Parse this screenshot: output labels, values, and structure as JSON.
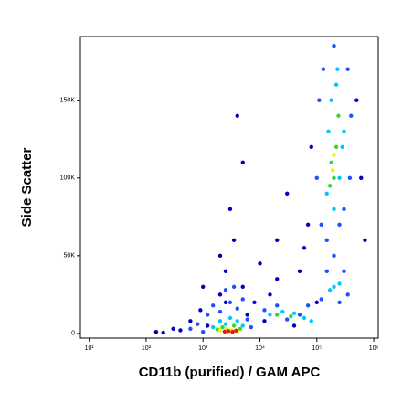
{
  "chart_data": {
    "type": "scatter",
    "x_label": "CD11b (purified) / GAM APC",
    "y_label": "Side Scatter",
    "log_x": true,
    "xlim": [
      7,
      1200000
    ],
    "ylim": [
      -3000,
      191000
    ],
    "xticks": [
      {
        "value": 10,
        "label": "10¹"
      },
      {
        "value": 100,
        "label": "10²"
      },
      {
        "value": 1000,
        "label": "10³"
      },
      {
        "value": 10000,
        "label": "10⁴"
      },
      {
        "value": 100000,
        "label": "10⁵"
      },
      {
        "value": 1000000,
        "label": "10⁶"
      }
    ],
    "yticks": [
      0,
      {
        "value": 50000,
        "label": "50K"
      },
      {
        "value": 100000,
        "label": "100K"
      },
      {
        "value": 150000,
        "label": "150K"
      }
    ],
    "series": [
      {
        "color": "#0000c0",
        "x": [
          150,
          300,
          600,
          900,
          1200,
          2000,
          2500,
          3500,
          5000,
          8000,
          15000,
          20000,
          30000,
          50000,
          70000,
          80000,
          500000,
          600000,
          3000,
          5000,
          10000,
          20000,
          4000,
          2000,
          1000,
          400,
          200,
          100000,
          700000,
          60000,
          2500,
          6000,
          12000,
          40000
        ],
        "values": [
          1000,
          3000,
          8000,
          15000,
          5000,
          25000,
          40000,
          60000,
          30000,
          20000,
          25000,
          60000,
          90000,
          40000,
          70000,
          120000,
          150000,
          100000,
          80000,
          110000,
          45000,
          35000,
          140000,
          50000,
          30000,
          2000,
          500,
          20000,
          60000,
          55000,
          20000,
          12000,
          8000,
          5000
        ]
      },
      {
        "color": "#1e50ff",
        "x": [
          800,
          1200,
          1500,
          2000,
          3000,
          4000,
          6000,
          7000,
          1000,
          600,
          2500,
          3500,
          5000,
          12000,
          20000,
          30000,
          50000,
          70000,
          120000,
          150000,
          250000,
          300000,
          110000,
          130000,
          200000,
          350000,
          400000,
          100000,
          380000,
          150000,
          300000,
          350000,
          120000,
          250000,
          200000
        ],
        "values": [
          6000,
          12000,
          18000,
          14000,
          20000,
          16000,
          9000,
          4000,
          1000,
          3000,
          28000,
          30000,
          22000,
          15000,
          18000,
          9000,
          12000,
          18000,
          70000,
          60000,
          70000,
          80000,
          150000,
          170000,
          185000,
          170000,
          140000,
          100000,
          100000,
          40000,
          40000,
          25000,
          22000,
          20000,
          50000
        ]
      },
      {
        "color": "#00c8ff",
        "x": [
          2000,
          2500,
          4000,
          5000,
          1500,
          3000,
          15000,
          25000,
          40000,
          60000,
          80000,
          150000,
          200000,
          250000,
          300000,
          180000,
          220000,
          160000,
          280000,
          200000,
          250000,
          170000,
          230000
        ],
        "values": [
          8000,
          6000,
          8000,
          5000,
          4000,
          10000,
          12000,
          14000,
          13000,
          10000,
          8000,
          90000,
          80000,
          100000,
          130000,
          150000,
          160000,
          130000,
          120000,
          30000,
          32000,
          28000,
          170000
        ]
      },
      {
        "color": "#30d830",
        "x": [
          2200,
          3500,
          4500,
          1800,
          180000,
          220000,
          200000,
          170000,
          240000,
          20000,
          35000
        ],
        "values": [
          4000,
          5000,
          3000,
          2500,
          110000,
          120000,
          100000,
          95000,
          140000,
          12000,
          11000
        ]
      },
      {
        "color": "#f0f000",
        "x": [
          2600,
          3200,
          2000,
          4000,
          200000,
          190000
        ],
        "values": [
          3000,
          2000,
          2000,
          1500,
          115000,
          105000
        ]
      },
      {
        "color": "#e02000",
        "x": [
          2800,
          3300,
          3800,
          2400
        ],
        "values": [
          1500,
          1000,
          1800,
          1200
        ]
      }
    ]
  }
}
